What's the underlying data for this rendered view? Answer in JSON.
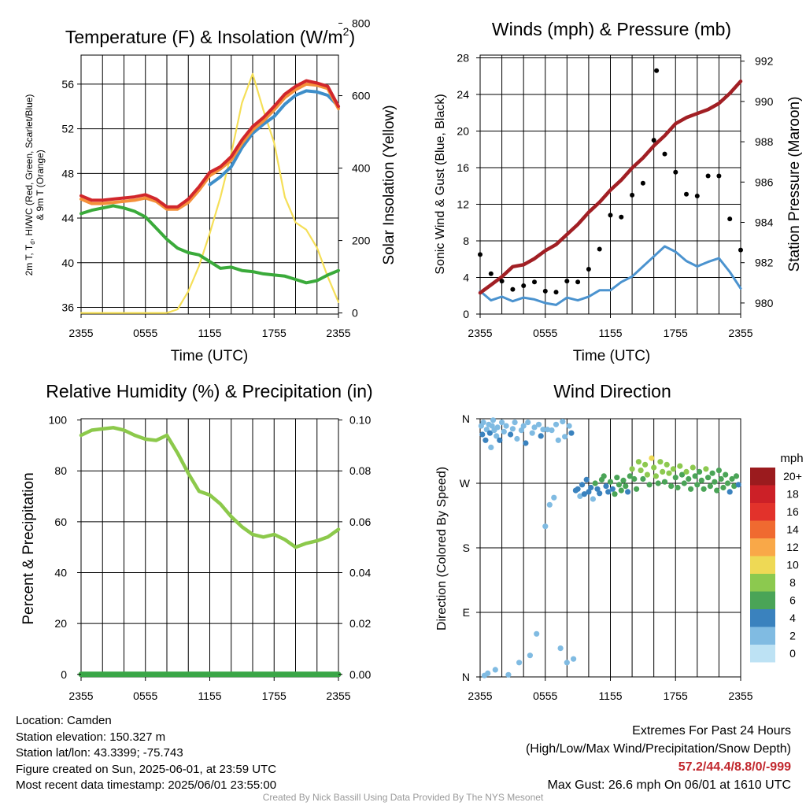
{
  "panels": {
    "temp": {
      "title_main": "Temperature (F) & Insolation (W/m",
      "title_sup": "2",
      "title_close": ")",
      "ylabel_lines": [
        "2m T, T",
        "d",
        ", HI/WC (Red, Green, Scarlet/Blue)",
        "& 9m T (Orange)"
      ],
      "y2label": "Solar Insolation (Yellow)",
      "xlabel": "Time (UTC)"
    },
    "wind": {
      "title": "Winds (mph) & Pressure (mb)",
      "ylabel": "Sonic Wind & Gust (Blue, Black)",
      "y2label": "Station Pressure (Maroon)",
      "xlabel": "Time (UTC)"
    },
    "rh": {
      "title": "Relative Humidity (%) & Precipitation (in)",
      "ylabel": "Percent & Precipitation"
    },
    "wdir": {
      "title": "Wind Direction",
      "ylabel": "Direction (Colored By Speed)",
      "legend_title": "mph",
      "legend_labels": [
        "20+",
        "18",
        "16",
        "14",
        "12",
        "10",
        "8",
        "6",
        "4",
        "2",
        "0"
      ],
      "legend_colors": [
        "#9b1b1e",
        "#cc2027",
        "#e2322b",
        "#f06a30",
        "#f9a848",
        "#eed955",
        "#8cc94f",
        "#4aa457",
        "#3a82be",
        "#80bbe2",
        "#bde2f4"
      ]
    }
  },
  "info": {
    "location": "Location: Camden",
    "elevation": "Station elevation: 150.327 m",
    "latlon": "Station lat/lon: 43.3399; -75.743",
    "created": "Figure created on Sun, 2025-06-01, at 23:59 UTC",
    "recent": "Most recent data timestamp: 2025/06/01 23:55:00"
  },
  "extremes": {
    "title": "Extremes For Past 24 Hours",
    "subtitle": "(High/Low/Max Wind/Precipitation/Snow Depth)",
    "values": "57.2/44.4/8.8/0/-999",
    "gust": "Max Gust: 26.6 mph On 06/01 at 1610 UTC"
  },
  "credit": "Created By Nick Bassill Using Data Provided By The NYS Mesonet",
  "chart_data": [
    {
      "type": "line",
      "title": "Temperature (F) & Insolation (W/m2)",
      "xlabel": "Time (UTC)",
      "ylabel": "2m T, Td, HI/WC (Red, Green, Scarlet/Blue) & 9m T (Orange)",
      "y2label": "Solar Insolation (Yellow)",
      "x_ticks": [
        "2355",
        "0555",
        "1155",
        "1755",
        "2355"
      ],
      "ylim": [
        35.4,
        58.6
      ],
      "y_ticks": [
        36,
        40,
        44,
        48,
        52,
        56
      ],
      "y2lim": [
        -3,
        712
      ],
      "y2_ticks": [
        0,
        200,
        400,
        600,
        800
      ],
      "x_hours": [
        0,
        1,
        2,
        3,
        4,
        5,
        6,
        7,
        8,
        9,
        10,
        11,
        12,
        13,
        14,
        15,
        16,
        17,
        18,
        19,
        20,
        21,
        22,
        23,
        24
      ],
      "colors": {
        "temp": "#d1272c",
        "nine_m": "#f4903a",
        "heat_index": "#e03a2e",
        "wind_chill": "#3e8ec9",
        "dewpoint": "#3aaa3a",
        "insolation": "#f5df58"
      },
      "series": [
        {
          "role": "temp",
          "values": [
            46.0,
            45.6,
            45.6,
            45.7,
            45.8,
            45.9,
            46.1,
            45.7,
            45.0,
            45.0,
            45.7,
            46.8,
            48.1,
            48.6,
            49.5,
            51.0,
            52.2,
            53.0,
            54.0,
            55.1,
            55.8,
            56.3,
            56.1,
            55.8,
            54.0
          ]
        },
        {
          "role": "nine_m",
          "values": [
            45.7,
            45.3,
            45.3,
            45.4,
            45.5,
            45.6,
            45.8,
            45.5,
            44.8,
            44.8,
            45.4,
            46.5,
            47.8,
            48.4,
            49.2,
            50.7,
            51.9,
            52.7,
            53.7,
            54.8,
            55.5,
            56.0,
            55.9,
            55.6,
            53.8
          ]
        },
        {
          "role": "dewpoint",
          "values": [
            44.4,
            44.7,
            44.9,
            45.1,
            44.9,
            44.6,
            44.1,
            43.1,
            42.1,
            41.3,
            40.9,
            40.7,
            40.1,
            39.5,
            39.6,
            39.3,
            39.2,
            39.0,
            38.9,
            38.8,
            38.5,
            38.2,
            38.4,
            38.9,
            39.3
          ]
        },
        {
          "role": "wind_chill",
          "x_hours": [
            12,
            13,
            14,
            15,
            16,
            17,
            18,
            19,
            20,
            21,
            22,
            23,
            24
          ],
          "values": [
            47.0,
            47.7,
            48.6,
            50.3,
            51.6,
            52.4,
            53.1,
            54.2,
            55.0,
            55.4,
            55.3,
            55.0,
            54.0
          ]
        },
        {
          "role": "insolation",
          "values": [
            0,
            0,
            0,
            0,
            0,
            0,
            0,
            0,
            0,
            10,
            60,
            130,
            220,
            320,
            440,
            580,
            660,
            560,
            470,
            320,
            250,
            230,
            180,
            100,
            30
          ]
        }
      ]
    },
    {
      "type": "line",
      "title": "Winds (mph) & Pressure (mb)",
      "xlabel": "Time (UTC)",
      "ylabel": "Sonic Wind & Gust (Blue, Black)",
      "y2label": "Station Pressure (Maroon)",
      "x_ticks": [
        "2355",
        "0555",
        "1155",
        "1755",
        "2355"
      ],
      "ylim": [
        0,
        28.3
      ],
      "y_ticks": [
        0,
        4,
        8,
        12,
        16,
        20,
        24,
        28
      ],
      "y2lim": [
        979.45,
        992.3
      ],
      "y2_ticks": [
        980,
        982,
        984,
        986,
        988,
        990,
        992
      ],
      "x_hours": [
        0,
        1,
        2,
        3,
        4,
        5,
        6,
        7,
        8,
        9,
        10,
        11,
        12,
        13,
        14,
        15,
        16,
        17,
        18,
        19,
        20,
        21,
        22,
        23,
        24
      ],
      "colors": {
        "wind": "#4b93cf",
        "gust": "#000000",
        "pressure": "#a11f24"
      },
      "series": [
        {
          "role": "pressure",
          "values": [
            980.5,
            980.9,
            981.3,
            981.8,
            981.9,
            982.2,
            982.6,
            982.9,
            983.4,
            983.9,
            984.5,
            985.0,
            985.6,
            986.1,
            986.7,
            987.2,
            987.8,
            988.3,
            988.9,
            989.2,
            989.4,
            989.6,
            989.9,
            990.4,
            991.0
          ]
        },
        {
          "role": "wind",
          "values": [
            2.5,
            1.5,
            1.9,
            1.4,
            1.8,
            1.6,
            1.2,
            1.0,
            1.8,
            1.5,
            1.9,
            2.6,
            2.6,
            3.5,
            4.1,
            5.2,
            6.3,
            7.4,
            6.8,
            5.8,
            5.2,
            5.7,
            6.1,
            4.6,
            2.8
          ]
        },
        {
          "role": "gust",
          "values": [
            6.5,
            4.4,
            3.6,
            2.7,
            3.1,
            3.5,
            2.5,
            2.4,
            3.6,
            3.5,
            4.9,
            7.1,
            10.8,
            10.6,
            13.0,
            14.3,
            19.0,
            17.5,
            15.5,
            13.1,
            12.9,
            15.1,
            15.1,
            10.4,
            7.0
          ]
        }
      ],
      "gust_max": {
        "x_hour": 16.25,
        "value": 26.6
      }
    },
    {
      "type": "line",
      "title": "Relative Humidity (%) & Precipitation (in)",
      "ylabel": "Percent & Precipitation",
      "x_ticks": [
        "2355",
        "0555",
        "1155",
        "1755",
        "2355"
      ],
      "ylim": [
        -1,
        100.5
      ],
      "y_ticks": [
        0,
        20,
        40,
        60,
        80,
        100
      ],
      "y2lim": [
        -0.001,
        0.1005
      ],
      "y2_ticks": [
        0.0,
        0.02,
        0.04,
        0.06,
        0.08,
        0.1
      ],
      "y2_tick_labels": [
        "0.00",
        "0.02",
        "0.04",
        "0.06",
        "0.08",
        "0.10"
      ],
      "x_hours": [
        0,
        1,
        2,
        3,
        4,
        5,
        6,
        7,
        8,
        9,
        10,
        11,
        12,
        13,
        14,
        15,
        16,
        17,
        18,
        19,
        20,
        21,
        22,
        23,
        24
      ],
      "colors": {
        "rh": "#8cc94b",
        "precip": "#3aa647"
      },
      "series": [
        {
          "role": "rh",
          "values": [
            94,
            96,
            96.5,
            97,
            96,
            94,
            92.5,
            92,
            94,
            87,
            79,
            72,
            70.5,
            67,
            62,
            58,
            55,
            54,
            55,
            53,
            50,
            51.5,
            52.5,
            54,
            57
          ]
        },
        {
          "role": "precip",
          "values": [
            0,
            0,
            0,
            0,
            0,
            0,
            0,
            0,
            0,
            0,
            0,
            0,
            0,
            0,
            0,
            0,
            0,
            0,
            0,
            0,
            0,
            0,
            0,
            0,
            0
          ]
        }
      ]
    },
    {
      "type": "scatter",
      "title": "Wind Direction",
      "ylabel": "Direction (Colored By Speed)",
      "x_ticks": [
        "2355",
        "0555",
        "1155",
        "1755",
        "2355"
      ],
      "y_ticks": [
        "N",
        "E",
        "S",
        "W",
        "N"
      ],
      "y_tick_values": [
        0,
        90,
        180,
        270,
        360
      ],
      "colorbar": {
        "title": "mph",
        "labels": [
          "20+",
          "18",
          "16",
          "14",
          "12",
          "10",
          "8",
          "6",
          "4",
          "2",
          "0"
        ]
      },
      "points": [
        [
          0.1,
          350,
          1
        ],
        [
          0.2,
          338,
          2
        ],
        [
          0.3,
          355,
          1
        ],
        [
          0.4,
          2,
          1
        ],
        [
          0.5,
          330,
          2
        ],
        [
          0.6,
          345,
          1
        ],
        [
          0.7,
          5,
          1
        ],
        [
          0.8,
          352,
          1
        ],
        [
          0.9,
          340,
          2
        ],
        [
          1.0,
          320,
          1
        ],
        [
          1.1,
          350,
          1
        ],
        [
          1.2,
          358,
          1
        ],
        [
          1.3,
          344,
          1
        ],
        [
          1.4,
          10,
          0
        ],
        [
          1.5,
          336,
          1
        ],
        [
          1.6,
          348,
          1
        ],
        [
          1.8,
          330,
          2
        ],
        [
          2.0,
          355,
          1
        ],
        [
          2.2,
          342,
          1
        ],
        [
          2.4,
          350,
          1
        ],
        [
          2.6,
          3,
          1
        ],
        [
          2.8,
          338,
          2
        ],
        [
          3.0,
          346,
          1
        ],
        [
          3.2,
          355,
          1
        ],
        [
          3.4,
          332,
          1
        ],
        [
          3.6,
          20,
          1
        ],
        [
          3.8,
          344,
          1
        ],
        [
          4.0,
          350,
          1
        ],
        [
          4.2,
          326,
          2
        ],
        [
          4.4,
          355,
          1
        ],
        [
          4.6,
          30,
          1
        ],
        [
          4.8,
          340,
          1
        ],
        [
          5.0,
          348,
          1
        ],
        [
          5.2,
          60,
          1
        ],
        [
          5.4,
          352,
          1
        ],
        [
          5.6,
          336,
          2
        ],
        [
          5.8,
          345,
          1
        ],
        [
          6.0,
          210,
          1
        ],
        [
          6.2,
          345,
          1
        ],
        [
          6.4,
          240,
          1
        ],
        [
          6.6,
          344,
          1
        ],
        [
          6.8,
          250,
          1
        ],
        [
          7.0,
          352,
          1
        ],
        [
          7.2,
          330,
          1
        ],
        [
          7.4,
          40,
          1
        ],
        [
          7.6,
          356,
          1
        ],
        [
          7.8,
          335,
          1
        ],
        [
          8.0,
          20,
          1
        ],
        [
          8.2,
          350,
          1
        ],
        [
          8.4,
          340,
          2
        ],
        [
          8.6,
          25,
          1
        ],
        [
          8.8,
          260,
          2
        ],
        [
          9.0,
          262,
          2
        ],
        [
          9.2,
          252,
          1
        ],
        [
          9.4,
          268,
          3
        ],
        [
          9.6,
          255,
          2
        ],
        [
          9.8,
          275,
          3
        ],
        [
          10.0,
          258,
          2
        ],
        [
          10.2,
          264,
          3
        ],
        [
          10.4,
          248,
          1
        ],
        [
          10.6,
          270,
          4
        ],
        [
          10.8,
          262,
          3
        ],
        [
          11.0,
          256,
          2
        ],
        [
          11.2,
          275,
          4
        ],
        [
          11.4,
          280,
          4
        ],
        [
          11.6,
          266,
          3
        ],
        [
          11.8,
          258,
          3
        ],
        [
          12.0,
          272,
          4
        ],
        [
          12.2,
          262,
          3
        ],
        [
          12.4,
          255,
          4
        ],
        [
          12.6,
          278,
          5
        ],
        [
          12.8,
          268,
          4
        ],
        [
          13.0,
          260,
          4
        ],
        [
          13.2,
          274,
          5
        ],
        [
          13.4,
          266,
          4
        ],
        [
          13.6,
          258,
          3
        ],
        [
          13.8,
          280,
          5
        ],
        [
          14.0,
          290,
          6
        ],
        [
          14.2,
          276,
          5
        ],
        [
          14.4,
          262,
          4
        ],
        [
          14.6,
          300,
          7
        ],
        [
          14.8,
          288,
          6
        ],
        [
          15.0,
          276,
          5
        ],
        [
          15.2,
          296,
          7
        ],
        [
          15.4,
          282,
          6
        ],
        [
          15.6,
          268,
          4
        ],
        [
          15.8,
          305,
          8
        ],
        [
          16.0,
          292,
          7
        ],
        [
          16.2,
          280,
          6
        ],
        [
          16.4,
          270,
          4
        ],
        [
          16.6,
          300,
          7
        ],
        [
          16.8,
          286,
          6
        ],
        [
          17.0,
          272,
          5
        ],
        [
          17.2,
          296,
          7
        ],
        [
          17.4,
          284,
          6
        ],
        [
          17.6,
          266,
          4
        ],
        [
          17.8,
          290,
          6
        ],
        [
          18.0,
          278,
          5
        ],
        [
          18.2,
          264,
          4
        ],
        [
          18.4,
          294,
          6
        ],
        [
          18.6,
          282,
          5
        ],
        [
          18.8,
          270,
          5
        ],
        [
          19.0,
          286,
          6
        ],
        [
          19.2,
          276,
          5
        ],
        [
          19.4,
          262,
          4
        ],
        [
          19.6,
          292,
          6
        ],
        [
          19.8,
          280,
          5
        ],
        [
          20.0,
          268,
          4
        ],
        [
          20.2,
          286,
          5
        ],
        [
          20.4,
          274,
          5
        ],
        [
          20.6,
          262,
          4
        ],
        [
          20.8,
          290,
          6
        ],
        [
          21.0,
          278,
          5
        ],
        [
          21.2,
          266,
          4
        ],
        [
          21.4,
          284,
          5
        ],
        [
          21.6,
          272,
          4
        ],
        [
          21.8,
          260,
          4
        ],
        [
          22.0,
          288,
          5
        ],
        [
          22.2,
          276,
          4
        ],
        [
          22.4,
          264,
          4
        ],
        [
          22.6,
          282,
          5
        ],
        [
          22.8,
          270,
          4
        ],
        [
          23.0,
          258,
          3
        ],
        [
          23.2,
          276,
          4
        ],
        [
          23.4,
          266,
          4
        ],
        [
          23.6,
          280,
          4
        ],
        [
          23.8,
          268,
          3
        ]
      ]
    }
  ]
}
